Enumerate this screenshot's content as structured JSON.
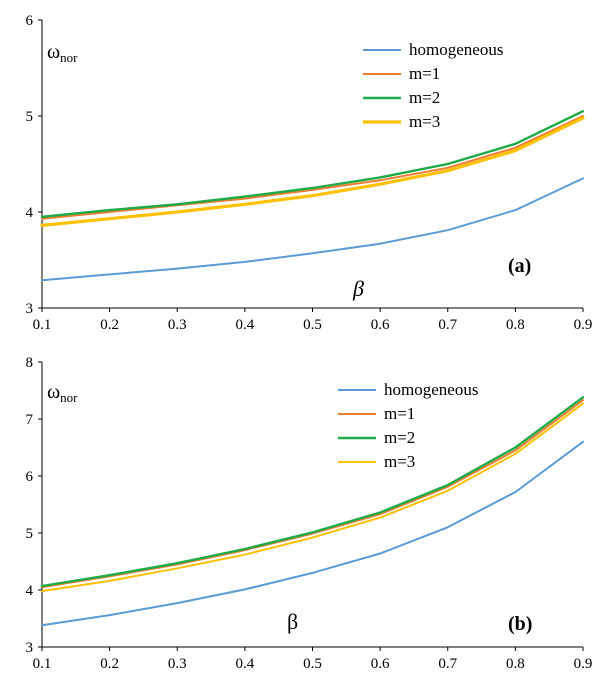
{
  "chart_data": [
    {
      "type": "line",
      "panel_label": "(a)",
      "xlabel": "β",
      "ylabel": "ω",
      "ylabel_sub": "nor",
      "xlim": [
        0.1,
        0.9
      ],
      "ylim": [
        3,
        6
      ],
      "xticks": [
        "0.1",
        "0.2",
        "0.3",
        "0.4",
        "0.5",
        "0.6",
        "0.7",
        "0.8",
        "0.9"
      ],
      "yticks": [
        "3",
        "4",
        "5",
        "6"
      ],
      "xlabel_style": "italic",
      "legend_position": "top-right",
      "x": [
        0.1,
        0.2,
        0.3,
        0.4,
        0.5,
        0.6,
        0.7,
        0.8,
        0.9
      ],
      "series": [
        {
          "name": "homogeneous",
          "color": "#5b9bd5",
          "width": 2,
          "values": [
            3.29,
            3.35,
            3.41,
            3.48,
            3.57,
            3.67,
            3.81,
            4.02,
            4.35
          ]
        },
        {
          "name": "m=1",
          "color": "#ed7d31",
          "width": 2,
          "values": [
            3.93,
            4.0,
            4.07,
            4.14,
            4.23,
            4.33,
            4.46,
            4.67,
            5.0
          ]
        },
        {
          "name": "m=2",
          "color": "#1faa48",
          "width": 2.4,
          "values": [
            3.95,
            4.02,
            4.08,
            4.16,
            4.25,
            4.36,
            4.5,
            4.71,
            5.05
          ]
        },
        {
          "name": "m=3",
          "color": "#ffc000",
          "width": 3.2,
          "values": [
            3.86,
            3.93,
            4.0,
            4.08,
            4.17,
            4.29,
            4.43,
            4.64,
            4.98
          ]
        }
      ]
    },
    {
      "type": "line",
      "panel_label": "(b)",
      "xlabel": "β",
      "ylabel": "ω",
      "ylabel_sub": "nor",
      "xlim": [
        0.1,
        0.9
      ],
      "ylim": [
        3,
        8
      ],
      "xticks": [
        "0.1",
        "0.2",
        "0.3",
        "0.4",
        "0.5",
        "0.6",
        "0.7",
        "0.8",
        "0.9"
      ],
      "yticks": [
        "3",
        "4",
        "5",
        "6",
        "7",
        "8"
      ],
      "xlabel_style": "normal",
      "legend_position": "top-center",
      "x": [
        0.1,
        0.2,
        0.3,
        0.4,
        0.5,
        0.6,
        0.7,
        0.8,
        0.9
      ],
      "series": [
        {
          "name": "homogeneous",
          "color": "#5b9bd5",
          "width": 2,
          "values": [
            3.38,
            3.56,
            3.77,
            4.01,
            4.3,
            4.64,
            5.1,
            5.72,
            6.6
          ]
        },
        {
          "name": "m=1",
          "color": "#ed7d31",
          "width": 2,
          "values": [
            4.05,
            4.24,
            4.45,
            4.7,
            4.99,
            5.33,
            5.81,
            6.45,
            7.33
          ]
        },
        {
          "name": "m=2",
          "color": "#1faa48",
          "width": 2.4,
          "values": [
            4.07,
            4.26,
            4.47,
            4.72,
            5.01,
            5.36,
            5.84,
            6.5,
            7.38
          ]
        },
        {
          "name": "m=3",
          "color": "#ffc000",
          "width": 2,
          "values": [
            3.98,
            4.16,
            4.38,
            4.62,
            4.92,
            5.27,
            5.74,
            6.39,
            7.27
          ]
        }
      ]
    }
  ]
}
